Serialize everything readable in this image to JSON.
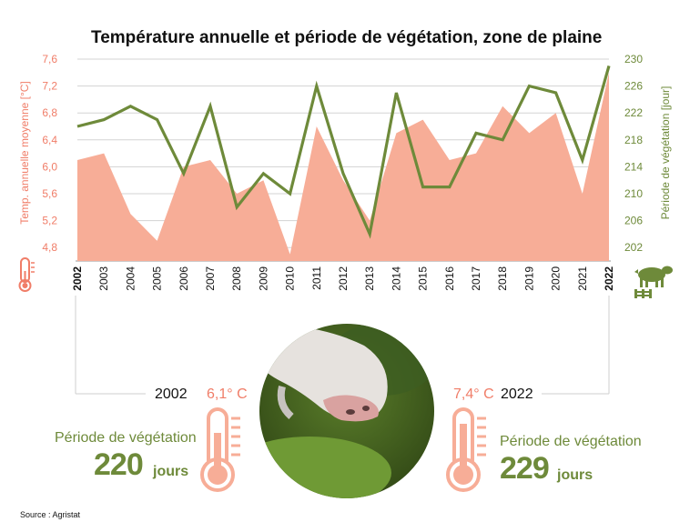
{
  "title": "Température annuelle et période de végétation, zone de plaine",
  "source": "Source : Agristat",
  "colors": {
    "temp": "#f7ad97",
    "temp_text": "#f07d68",
    "green": "#6e8a3a",
    "grid": "#d3d3d3"
  },
  "chart_data": {
    "type": "area+line",
    "title": "Température annuelle et période de végétation, zone de plaine",
    "categories": [
      "2002",
      "2003",
      "2004",
      "2005",
      "2006",
      "2007",
      "2008",
      "2009",
      "2010",
      "2011",
      "2012",
      "2013",
      "2014",
      "2015",
      "2016",
      "2017",
      "2018",
      "2019",
      "2020",
      "2021",
      "2022"
    ],
    "series": [
      {
        "name": "Temp. annuelle moyenne [°C]",
        "type": "area",
        "axis": "left",
        "values": [
          6.1,
          6.2,
          5.3,
          4.9,
          6.0,
          6.1,
          5.6,
          5.8,
          4.7,
          6.6,
          5.8,
          5.2,
          6.5,
          6.7,
          6.1,
          6.2,
          6.9,
          6.5,
          6.8,
          5.6,
          7.4
        ]
      },
      {
        "name": "Période de végétation [jour]",
        "type": "line",
        "axis": "right",
        "values": [
          220,
          221,
          223,
          221,
          213,
          223,
          208,
          213,
          210,
          226,
          213,
          204,
          225,
          211,
          211,
          219,
          218,
          226,
          225,
          215,
          229
        ]
      }
    ],
    "ylabel_left": "Temp. annuelle moyenne [°C]",
    "ylabel_right": "Période de végétation [jour]",
    "yticks_left": [
      "4,8",
      "5,2",
      "5,6",
      "6,0",
      "6,4",
      "6,8",
      "7,2",
      "7,6"
    ],
    "yticks_right": [
      "202",
      "206",
      "210",
      "214",
      "218",
      "222",
      "226",
      "230"
    ],
    "ylim_left": [
      4.6,
      7.6
    ],
    "ylim_right": [
      200,
      230
    ],
    "grid": true
  },
  "summary": {
    "left": {
      "year": "2002",
      "temp": "6,1° C",
      "label": "Période de végétation",
      "days": "220",
      "unit": "jours"
    },
    "right": {
      "year": "2022",
      "temp": "7,4° C",
      "label": "Période de végétation",
      "days": "229",
      "unit": "jours"
    }
  }
}
